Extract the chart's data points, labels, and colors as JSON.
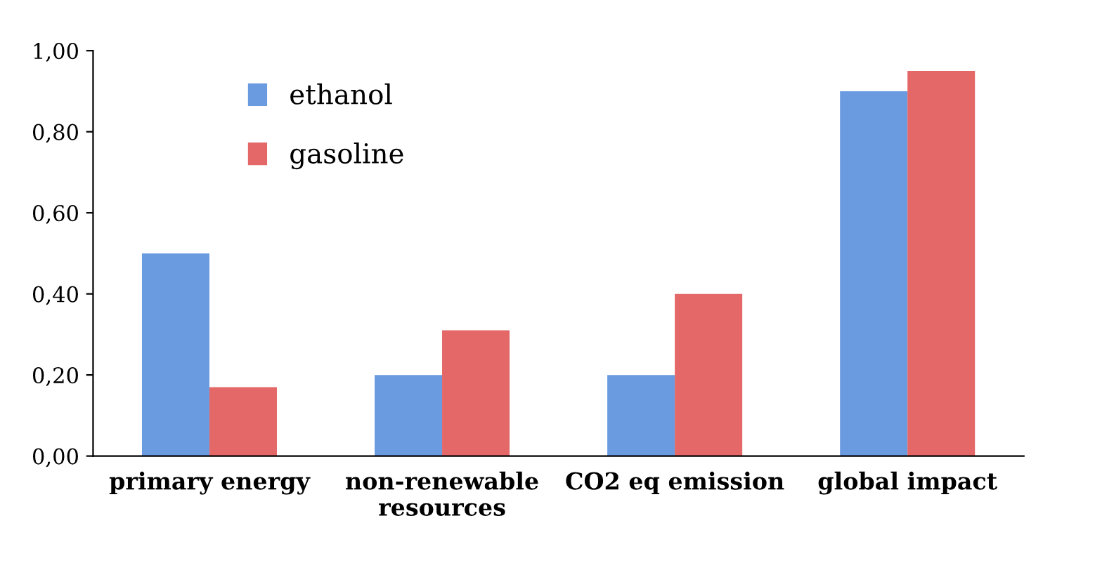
{
  "chart_data": {
    "type": "bar",
    "categories": [
      "primary energy",
      "non-renewable\nresources",
      "CO2 eq emission",
      "global impact"
    ],
    "series": [
      {
        "name": "ethanol",
        "color": "#6a9be0",
        "values": [
          0.5,
          0.2,
          0.2,
          0.9
        ]
      },
      {
        "name": "gasoline",
        "color": "#e46868",
        "values": [
          0.17,
          0.31,
          0.4,
          0.95
        ]
      }
    ],
    "ylim": [
      0,
      1
    ],
    "yticks": [
      {
        "value": 0,
        "label": "0,00"
      },
      {
        "value": 0.2,
        "label": "0,20"
      },
      {
        "value": 0.4,
        "label": "0,40"
      },
      {
        "value": 0.6,
        "label": "0,60"
      },
      {
        "value": 0.8,
        "label": "0,80"
      },
      {
        "value": 1.0,
        "label": "1,00"
      }
    ],
    "grid": false,
    "legend": "top left"
  }
}
